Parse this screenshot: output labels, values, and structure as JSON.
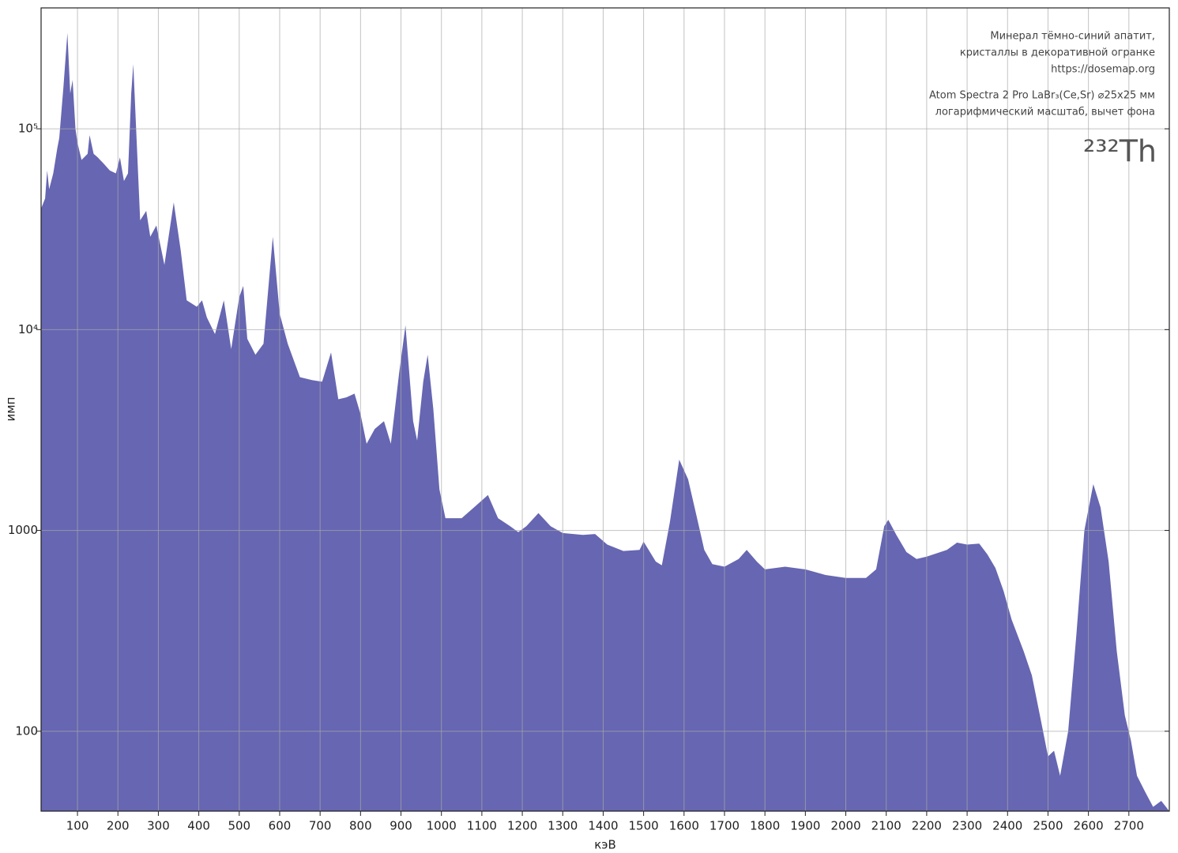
{
  "chart_data": {
    "type": "area",
    "annotations": [
      "Минерал тёмно-синий апатит,",
      "кристаллы в декоративной огранке",
      "https://dosemap.org",
      "Atom Spectra 2 Pro LaBr₃(Ce,Sr) ⌀25x25 мм",
      "логарифмический масштаб, вычет фона"
    ],
    "isotope": "²³²Th",
    "xlabel": "кэВ",
    "ylabel": "имп",
    "color": "#6666b2",
    "log_y": true,
    "grid": true,
    "xlim": [
      10,
      2800
    ],
    "ylim": [
      40,
      400000
    ],
    "xticks": [
      100,
      200,
      300,
      400,
      500,
      600,
      700,
      800,
      900,
      1000,
      1100,
      1200,
      1300,
      1400,
      1500,
      1600,
      1700,
      1800,
      1900,
      2000,
      2100,
      2200,
      2300,
      2400,
      2500,
      2600,
      2700
    ],
    "yticks": [
      100,
      1000,
      {
        "value": 10000,
        "label": "10⁴"
      },
      {
        "value": 100000,
        "label": "10⁵"
      }
    ],
    "x": [
      10,
      20,
      25,
      30,
      40,
      50,
      55,
      65,
      75,
      82,
      88,
      95,
      100,
      110,
      125,
      130,
      140,
      150,
      165,
      180,
      195,
      205,
      215,
      225,
      233,
      238,
      245,
      255,
      270,
      280,
      295,
      315,
      338,
      355,
      370,
      395,
      408,
      420,
      440,
      462,
      480,
      500,
      510,
      520,
      540,
      560,
      583,
      600,
      620,
      650,
      680,
      705,
      727,
      745,
      765,
      785,
      800,
      815,
      835,
      858,
      875,
      895,
      911,
      930,
      940,
      955,
      966,
      980,
      995,
      1010,
      1050,
      1080,
      1115,
      1140,
      1170,
      1190,
      1210,
      1240,
      1270,
      1300,
      1350,
      1380,
      1410,
      1450,
      1490,
      1500,
      1530,
      1545,
      1565,
      1588,
      1610,
      1630,
      1650,
      1670,
      1700,
      1735,
      1755,
      1780,
      1800,
      1850,
      1900,
      1950,
      2000,
      2050,
      2075,
      2095,
      2105,
      2125,
      2150,
      2175,
      2200,
      2250,
      2275,
      2300,
      2330,
      2350,
      2370,
      2390,
      2410,
      2440,
      2460,
      2480,
      2500,
      2515,
      2530,
      2550,
      2570,
      2590,
      2612,
      2630,
      2650,
      2670,
      2690,
      2705,
      2720,
      2740,
      2760,
      2780,
      2800
    ],
    "values": [
      40000,
      45000,
      62000,
      50000,
      60000,
      80000,
      90000,
      160000,
      300000,
      150000,
      175000,
      100000,
      85000,
      70000,
      75000,
      93000,
      75000,
      72000,
      67000,
      62000,
      60000,
      72000,
      55000,
      60000,
      150000,
      210000,
      100000,
      35000,
      39000,
      29000,
      33000,
      21000,
      43000,
      25000,
      14000,
      13000,
      14000,
      11500,
      9500,
      14000,
      8000,
      14500,
      16500,
      9000,
      7500,
      8500,
      29000,
      12000,
      8500,
      5800,
      5600,
      5500,
      7700,
      4500,
      4600,
      4800,
      3800,
      2700,
      3200,
      3500,
      2700,
      6000,
      10500,
      3500,
      2800,
      5500,
      7500,
      4000,
      1600,
      1150,
      1150,
      1300,
      1500,
      1150,
      1050,
      980,
      1050,
      1220,
      1050,
      970,
      950,
      960,
      850,
      790,
      800,
      880,
      700,
      670,
      1100,
      2250,
      1800,
      1200,
      800,
      680,
      660,
      720,
      800,
      700,
      640,
      660,
      640,
      600,
      580,
      580,
      640,
      1050,
      1130,
      950,
      780,
      720,
      740,
      800,
      870,
      850,
      860,
      760,
      650,
      500,
      360,
      250,
      190,
      120,
      75,
      80,
      60,
      100,
      300,
      1000,
      1700,
      1300,
      700,
      250,
      120,
      90,
      60,
      50,
      42,
      45,
      40
    ]
  }
}
